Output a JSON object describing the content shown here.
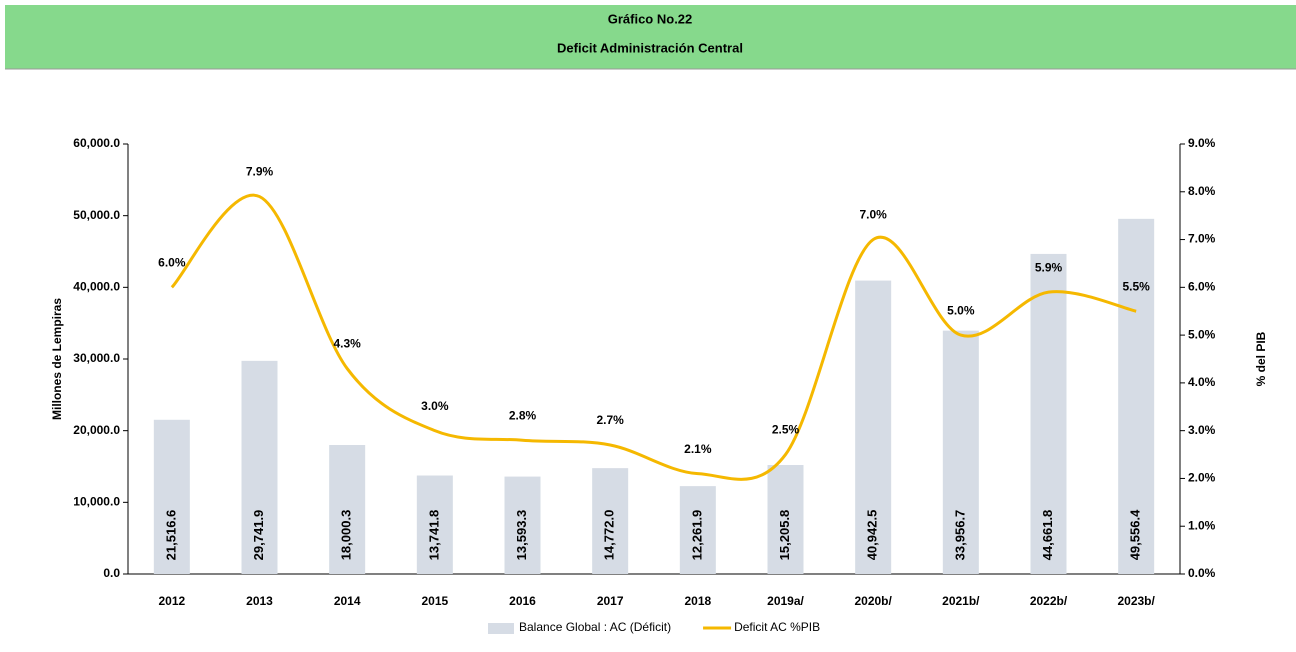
{
  "chart_data": {
    "type": "bar-line",
    "title": "Gráfico No.22",
    "subtitle": "Deficit Administración Central",
    "y_label": "Millones de Lempiras",
    "y2_label": "% del PIB",
    "categories": [
      "2012",
      "2013",
      "2014",
      "2015",
      "2016",
      "2017",
      "2018",
      "2019a/",
      "2020b/",
      "2021b/",
      "2022b/",
      "2023b/"
    ],
    "series": [
      {
        "name": "Balance Global : AC (Déficit)",
        "type": "bar",
        "color": "#d6dce5",
        "values": [
          21516.6,
          29741.9,
          18000.3,
          13741.8,
          13593.3,
          14772.0,
          12261.9,
          15205.8,
          40942.5,
          33956.7,
          44661.8,
          49556.4
        ],
        "value_labels": [
          "21,516.6",
          "29,741.9",
          "18,000.3",
          "13,741.8",
          "13,593.3",
          "14,772.0",
          "12,261.9",
          "15,205.8",
          "40,942.5",
          "33,956.7",
          "44,661.8",
          "49,556.4"
        ]
      },
      {
        "name": "Deficit AC %PIB",
        "type": "line",
        "axis": "y2",
        "color": "#f5b800",
        "values": [
          6.0,
          7.9,
          4.3,
          3.0,
          2.8,
          2.7,
          2.1,
          2.5,
          7.0,
          5.0,
          5.9,
          5.5
        ],
        "value_labels": [
          "6.0%",
          "7.9%",
          "4.3%",
          "3.0%",
          "2.8%",
          "2.7%",
          "2.1%",
          "2.5%",
          "7.0%",
          "5.0%",
          "5.9%",
          "5.5%"
        ]
      }
    ],
    "ylim": [
      0,
      60000
    ],
    "yticks": [
      {
        "value": 0,
        "label": "0.0"
      },
      {
        "value": 10000,
        "label": "10,000.0"
      },
      {
        "value": 20000,
        "label": "20,000.0"
      },
      {
        "value": 30000,
        "label": "30,000.0"
      },
      {
        "value": 40000,
        "label": "40,000.0"
      },
      {
        "value": 50000,
        "label": "50,000.0"
      },
      {
        "value": 60000,
        "label": "60,000.0"
      }
    ],
    "y2lim": [
      0,
      9
    ],
    "y2ticks": [
      {
        "value": 0,
        "label": "0.0%"
      },
      {
        "value": 1,
        "label": "1.0%"
      },
      {
        "value": 2,
        "label": "2.0%"
      },
      {
        "value": 3,
        "label": "3.0%"
      },
      {
        "value": 4,
        "label": "4.0%"
      },
      {
        "value": 5,
        "label": "5.0%"
      },
      {
        "value": 6,
        "label": "6.0%"
      },
      {
        "value": 7,
        "label": "7.0%"
      },
      {
        "value": 8,
        "label": "8.0%"
      },
      {
        "value": 9,
        "label": "9.0%"
      }
    ],
    "legend": "bottom"
  }
}
